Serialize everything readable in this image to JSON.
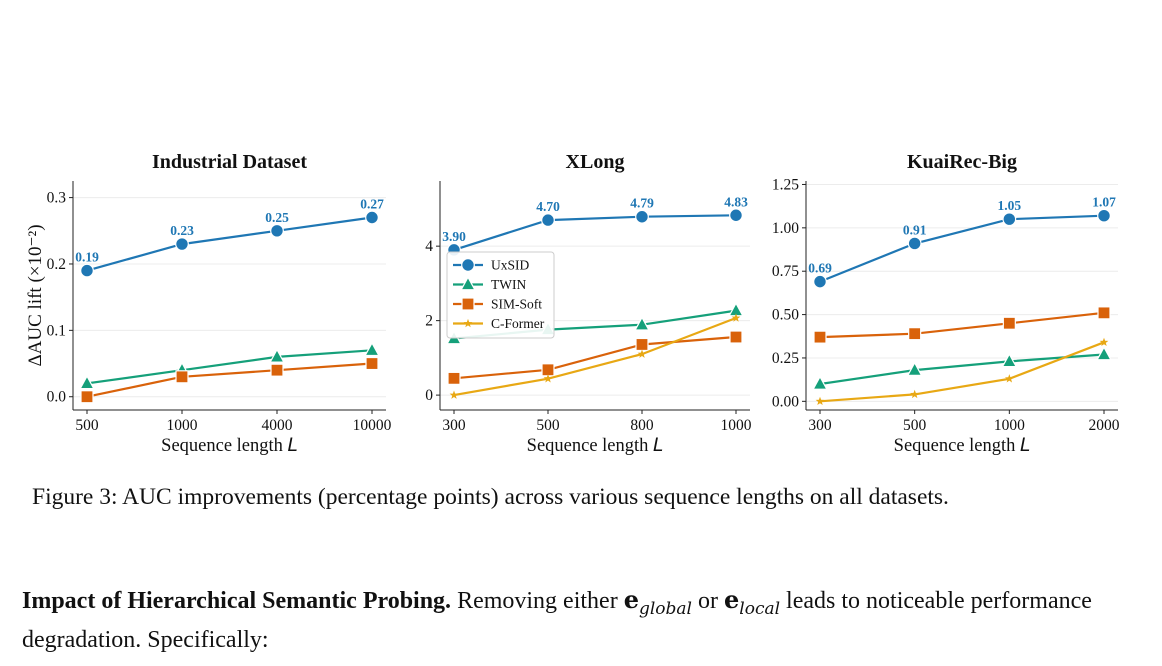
{
  "chart_data": [
    {
      "type": "line",
      "title": "Industrial Dataset",
      "xlabel": "Sequence length L",
      "ylabel": "ΔAUC lift (×10⁻²)",
      "x_categories": [
        "500",
        "1000",
        "4000",
        "10000"
      ],
      "ylim": [
        -0.02,
        0.325
      ],
      "yticks": [
        0.0,
        0.1,
        0.2,
        0.3
      ],
      "ytick_labels": [
        "0.0",
        "0.1",
        "0.2",
        "0.3"
      ],
      "grid": true,
      "series": [
        {
          "name": "UxSID",
          "color": "#1f77b4",
          "marker": "circle",
          "values": [
            0.19,
            0.23,
            0.25,
            0.27
          ],
          "labels": [
            "0.19",
            "0.23",
            "0.25",
            "0.27"
          ]
        },
        {
          "name": "TWIN",
          "color": "#15a07a",
          "marker": "triangle",
          "values": [
            0.02,
            0.04,
            0.06,
            0.07
          ]
        },
        {
          "name": "SIM-Soft",
          "color": "#d9620a",
          "marker": "square",
          "values": [
            0.0,
            0.03,
            0.04,
            0.05
          ]
        }
      ]
    },
    {
      "type": "line",
      "title": "XLong",
      "xlabel": "Sequence length L",
      "ylabel": "",
      "x_categories": [
        "300",
        "500",
        "800",
        "1000"
      ],
      "ylim": [
        -0.4,
        5.75
      ],
      "yticks": [
        0,
        2,
        4
      ],
      "ytick_labels": [
        "0",
        "2",
        "4"
      ],
      "grid": true,
      "legend": "center-left",
      "series": [
        {
          "name": "UxSID",
          "color": "#1f77b4",
          "marker": "circle",
          "values": [
            3.9,
            4.7,
            4.79,
            4.83
          ],
          "labels": [
            "3.90",
            "4.70",
            "4.79",
            "4.83"
          ]
        },
        {
          "name": "TWIN",
          "color": "#15a07a",
          "marker": "triangle",
          "values": [
            1.52,
            1.76,
            1.89,
            2.27
          ]
        },
        {
          "name": "SIM-Soft",
          "color": "#d9620a",
          "marker": "square",
          "values": [
            0.45,
            0.68,
            1.36,
            1.56
          ]
        },
        {
          "name": "C-Former",
          "color": "#e8a814",
          "marker": "star",
          "values": [
            0.0,
            0.44,
            1.1,
            2.07
          ]
        }
      ]
    },
    {
      "type": "line",
      "title": "KuaiRec-Big",
      "xlabel": "Sequence length L",
      "ylabel": "",
      "x_categories": [
        "300",
        "500",
        "1000",
        "2000"
      ],
      "ylim": [
        -0.05,
        1.27
      ],
      "yticks": [
        0.0,
        0.25,
        0.5,
        0.75,
        1.0,
        1.25
      ],
      "ytick_labels": [
        "0.00",
        "0.25",
        "0.50",
        "0.75",
        "1.00",
        "1.25"
      ],
      "grid": true,
      "series": [
        {
          "name": "UxSID",
          "color": "#1f77b4",
          "marker": "circle",
          "values": [
            0.69,
            0.91,
            1.05,
            1.07
          ],
          "labels": [
            "0.69",
            "0.91",
            "1.05",
            "1.07"
          ]
        },
        {
          "name": "TWIN",
          "color": "#15a07a",
          "marker": "triangle",
          "values": [
            0.1,
            0.18,
            0.23,
            0.27
          ]
        },
        {
          "name": "SIM-Soft",
          "color": "#d9620a",
          "marker": "square",
          "values": [
            0.37,
            0.39,
            0.45,
            0.51
          ]
        },
        {
          "name": "C-Former",
          "color": "#e8a814",
          "marker": "star",
          "values": [
            0.0,
            0.04,
            0.13,
            0.34
          ]
        }
      ]
    }
  ],
  "caption": "Figure 3: AUC improvements (percentage points) across various sequence lengths on all datasets.",
  "paragraph": {
    "bold_lead": "Impact of Hierarchical Semantic Probing.",
    "text_1": " Removing either ",
    "var_1_base": "e",
    "var_1_sub": "global",
    "text_2": " or ",
    "var_2_base": "e",
    "var_2_sub": "local",
    "text_3": " leads to noticeable performance degradation. Specifically:"
  }
}
